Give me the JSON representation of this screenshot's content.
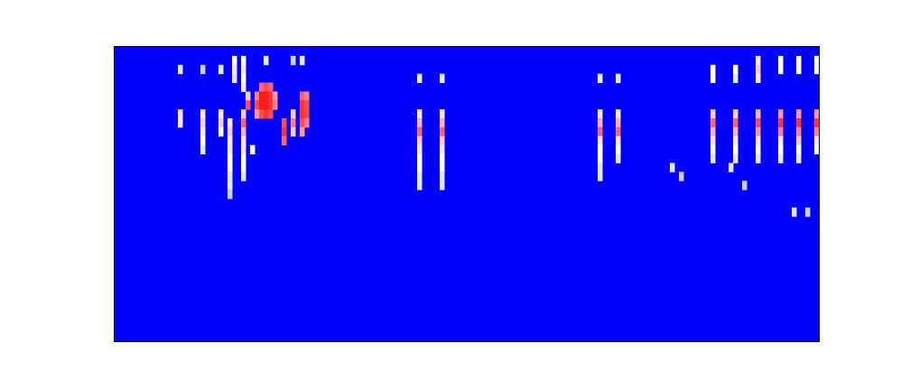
{
  "chart_data": {
    "type": "heatmap",
    "xlim": [
      0,
      156
    ],
    "ylim": [
      33,
      0
    ],
    "tick_labels": false,
    "color": [
      "#0000ff",
      "#ffffff",
      "#ff0000"
    ],
    "zlim": [
      0,
      1
    ],
    "cells": [
      [
        14,
        2,
        0.45
      ],
      [
        19,
        2,
        0.4
      ],
      [
        23,
        2,
        0.45
      ],
      [
        26,
        1,
        0.5
      ],
      [
        26,
        2,
        0.55
      ],
      [
        26,
        3,
        0.45
      ],
      [
        28,
        1,
        0.5
      ],
      [
        28,
        2,
        0.55
      ],
      [
        28,
        3,
        0.5
      ],
      [
        28,
        4,
        0.55
      ],
      [
        33,
        1,
        0.45
      ],
      [
        39,
        1,
        0.4
      ],
      [
        41,
        1,
        0.45
      ],
      [
        14,
        7,
        0.55
      ],
      [
        14,
        8,
        0.55
      ],
      [
        19,
        7,
        0.55
      ],
      [
        19,
        8,
        0.6
      ],
      [
        19,
        9,
        0.55
      ],
      [
        19,
        10,
        0.5
      ],
      [
        19,
        11,
        0.45
      ],
      [
        23,
        7,
        0.55
      ],
      [
        23,
        8,
        0.6
      ],
      [
        23,
        9,
        0.5
      ],
      [
        25,
        8,
        0.55
      ],
      [
        25,
        9,
        0.6
      ],
      [
        25,
        10,
        0.55
      ],
      [
        25,
        11,
        0.55
      ],
      [
        25,
        12,
        0.5
      ],
      [
        25,
        13,
        0.5
      ],
      [
        25,
        14,
        0.45
      ],
      [
        25,
        15,
        0.45
      ],
      [
        25,
        16,
        0.4
      ],
      [
        28,
        7,
        0.6
      ],
      [
        28,
        8,
        0.8
      ],
      [
        28,
        9,
        0.65
      ],
      [
        28,
        10,
        0.55
      ],
      [
        28,
        11,
        0.55
      ],
      [
        28,
        12,
        0.5
      ],
      [
        28,
        13,
        0.5
      ],
      [
        28,
        14,
        0.45
      ],
      [
        29,
        5,
        0.6
      ],
      [
        29,
        6,
        0.85
      ],
      [
        31,
        5,
        0.75
      ],
      [
        31,
        6,
        0.85
      ],
      [
        31,
        7,
        0.7
      ],
      [
        32,
        4,
        0.8
      ],
      [
        32,
        5,
        0.95
      ],
      [
        32,
        6,
        0.95
      ],
      [
        32,
        7,
        0.85
      ],
      [
        33,
        4,
        0.85
      ],
      [
        33,
        5,
        0.95
      ],
      [
        33,
        6,
        0.95
      ],
      [
        33,
        7,
        0.9
      ],
      [
        34,
        4,
        0.8
      ],
      [
        34,
        5,
        0.9
      ],
      [
        34,
        6,
        0.9
      ],
      [
        34,
        7,
        0.85
      ],
      [
        35,
        5,
        0.7
      ],
      [
        35,
        6,
        0.75
      ],
      [
        37,
        8,
        0.85
      ],
      [
        37,
        9,
        0.9
      ],
      [
        37,
        10,
        0.8
      ],
      [
        39,
        7,
        0.6
      ],
      [
        39,
        8,
        0.75
      ],
      [
        39,
        9,
        0.6
      ],
      [
        41,
        5,
        0.8
      ],
      [
        41,
        6,
        0.9
      ],
      [
        41,
        7,
        0.9
      ],
      [
        41,
        8,
        0.85
      ],
      [
        41,
        9,
        0.7
      ],
      [
        42,
        5,
        0.75
      ],
      [
        42,
        6,
        0.85
      ],
      [
        42,
        7,
        0.85
      ],
      [
        42,
        8,
        0.75
      ],
      [
        30,
        11,
        0.5
      ],
      [
        67,
        3,
        0.45
      ],
      [
        67,
        7,
        0.55
      ],
      [
        67,
        8,
        0.65
      ],
      [
        67,
        9,
        0.8
      ],
      [
        67,
        10,
        0.6
      ],
      [
        67,
        11,
        0.55
      ],
      [
        67,
        12,
        0.5
      ],
      [
        67,
        13,
        0.5
      ],
      [
        67,
        14,
        0.45
      ],
      [
        67,
        15,
        0.45
      ],
      [
        72,
        3,
        0.45
      ],
      [
        72,
        7,
        0.55
      ],
      [
        72,
        8,
        0.65
      ],
      [
        72,
        9,
        0.8
      ],
      [
        72,
        10,
        0.6
      ],
      [
        72,
        11,
        0.55
      ],
      [
        72,
        12,
        0.5
      ],
      [
        72,
        13,
        0.5
      ],
      [
        72,
        14,
        0.45
      ],
      [
        72,
        15,
        0.45
      ],
      [
        107,
        3,
        0.45
      ],
      [
        107,
        7,
        0.55
      ],
      [
        107,
        8,
        0.65
      ],
      [
        107,
        9,
        0.8
      ],
      [
        107,
        10,
        0.55
      ],
      [
        107,
        11,
        0.5
      ],
      [
        107,
        12,
        0.5
      ],
      [
        107,
        13,
        0.45
      ],
      [
        107,
        14,
        0.45
      ],
      [
        111,
        3,
        0.45
      ],
      [
        111,
        7,
        0.55
      ],
      [
        111,
        8,
        0.65
      ],
      [
        111,
        9,
        0.8
      ],
      [
        111,
        10,
        0.55
      ],
      [
        111,
        11,
        0.5
      ],
      [
        111,
        12,
        0.45
      ],
      [
        123,
        13,
        0.45
      ],
      [
        125,
        14,
        0.4
      ],
      [
        136,
        13,
        0.45
      ],
      [
        139,
        15,
        0.4
      ],
      [
        150,
        18,
        0.45
      ],
      [
        153,
        18,
        0.4
      ],
      [
        132,
        2,
        0.5
      ],
      [
        132,
        3,
        0.5
      ],
      [
        132,
        7,
        0.6
      ],
      [
        132,
        8,
        0.8
      ],
      [
        132,
        9,
        0.65
      ],
      [
        132,
        10,
        0.55
      ],
      [
        132,
        11,
        0.5
      ],
      [
        132,
        12,
        0.45
      ],
      [
        137,
        2,
        0.5
      ],
      [
        137,
        3,
        0.45
      ],
      [
        137,
        7,
        0.6
      ],
      [
        137,
        8,
        0.8
      ],
      [
        137,
        9,
        0.65
      ],
      [
        137,
        10,
        0.55
      ],
      [
        137,
        11,
        0.5
      ],
      [
        137,
        12,
        0.45
      ],
      [
        142,
        1,
        0.55
      ],
      [
        142,
        2,
        0.6
      ],
      [
        142,
        3,
        0.55
      ],
      [
        142,
        7,
        0.65
      ],
      [
        142,
        8,
        0.85
      ],
      [
        142,
        9,
        0.7
      ],
      [
        142,
        10,
        0.55
      ],
      [
        142,
        11,
        0.5
      ],
      [
        142,
        12,
        0.45
      ],
      [
        147,
        1,
        0.5
      ],
      [
        147,
        2,
        0.5
      ],
      [
        147,
        7,
        0.7
      ],
      [
        147,
        8,
        0.9
      ],
      [
        147,
        9,
        0.75
      ],
      [
        147,
        10,
        0.55
      ],
      [
        147,
        11,
        0.5
      ],
      [
        147,
        12,
        0.45
      ],
      [
        151,
        1,
        0.5
      ],
      [
        151,
        2,
        0.5
      ],
      [
        151,
        7,
        0.7
      ],
      [
        151,
        8,
        0.9
      ],
      [
        151,
        9,
        0.75
      ],
      [
        151,
        10,
        0.6
      ],
      [
        151,
        11,
        0.5
      ],
      [
        151,
        12,
        0.45
      ],
      [
        155,
        1,
        0.5
      ],
      [
        155,
        2,
        0.5
      ],
      [
        155,
        7,
        0.7
      ],
      [
        155,
        8,
        0.9
      ],
      [
        155,
        9,
        0.75
      ],
      [
        155,
        10,
        0.55
      ],
      [
        155,
        11,
        0.5
      ]
    ]
  }
}
